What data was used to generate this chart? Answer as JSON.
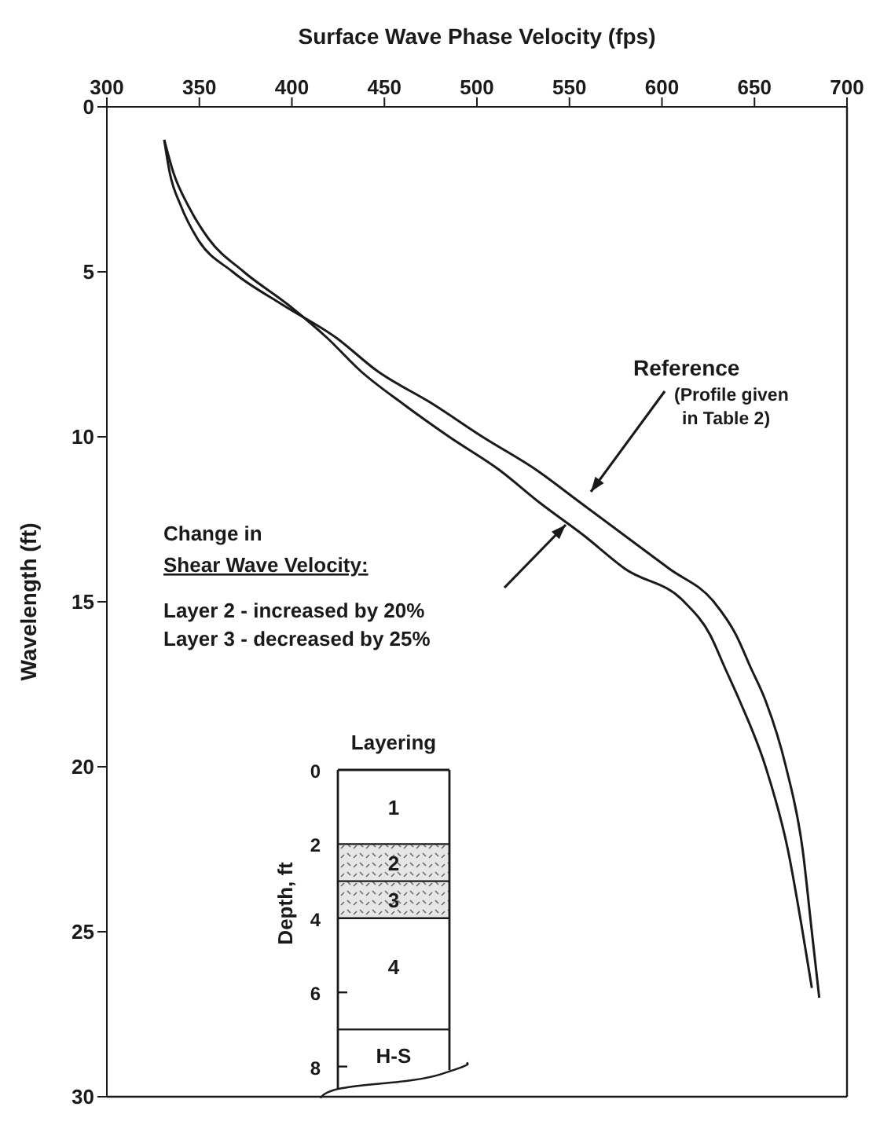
{
  "chart_data": {
    "type": "line",
    "xlabel": "Surface Wave Phase Velocity (fps)",
    "ylabel": "Wavelength  (ft)",
    "xlim": [
      300,
      700
    ],
    "xticks": [
      300,
      350,
      400,
      450,
      500,
      550,
      600,
      650,
      700
    ],
    "ylim": [
      30,
      0
    ],
    "yticks": [
      0,
      5,
      10,
      15,
      20,
      25,
      30
    ],
    "grid": false,
    "legend": false,
    "marker": "none",
    "line_style": "solid",
    "series": [
      {
        "name": "Reference",
        "color": "#1a1a1a",
        "x": [
          331,
          334,
          340,
          349,
          368,
          395,
          424,
          446,
          476,
          503,
          532,
          556,
          580,
          604,
          628,
          640,
          648,
          656,
          667,
          676,
          681,
          685
        ],
        "values": [
          1,
          2,
          3,
          4,
          5,
          6,
          7,
          8,
          9,
          10,
          11,
          12,
          13,
          14,
          15,
          16,
          17,
          18,
          20,
          22.5,
          25,
          27
        ]
      },
      {
        "color": "#1a1a1a",
        "x": [
          331,
          336,
          344,
          355,
          374,
          398,
          419,
          437,
          460,
          485,
          512,
          534,
          558,
          580,
          612,
          626,
          634,
          642,
          656,
          668,
          676,
          681
        ],
        "values": [
          1,
          2,
          3,
          4,
          5,
          6,
          7,
          8,
          9,
          10,
          11,
          12,
          13,
          14,
          15,
          16,
          17,
          18,
          20,
          22.5,
          25,
          26.7
        ]
      }
    ],
    "annotations": [
      "(Profile given in Table 2)",
      "Change in",
      "Shear Wave Velocity:",
      "Layer 2 - increased by 20%",
      "Layer 3 - decreased by 25%",
      "Layering",
      "Depth, ft",
      "0",
      "2",
      "4",
      "6",
      "8",
      "1",
      "2",
      "3",
      "4",
      "H-S"
    ]
  }
}
